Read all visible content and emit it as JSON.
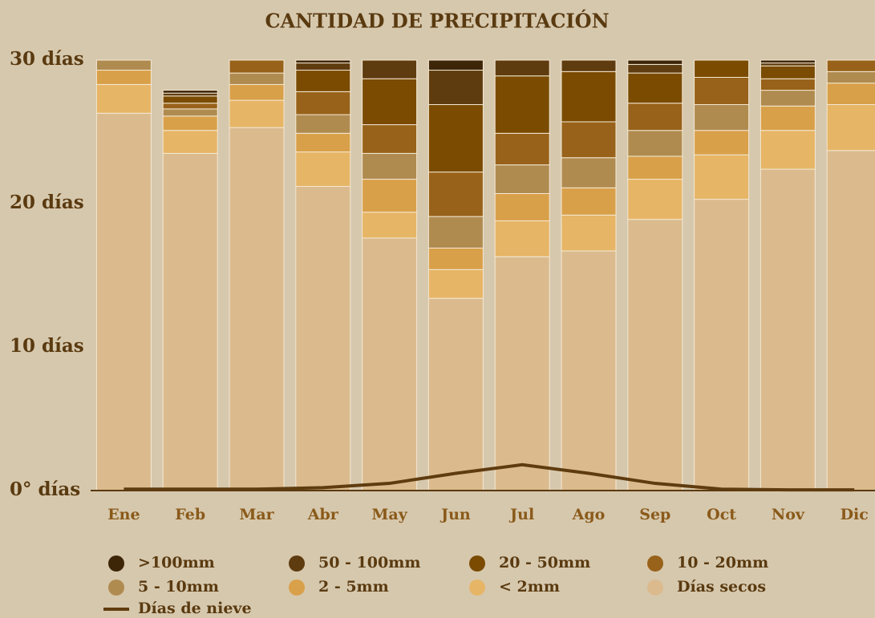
{
  "chart_data": {
    "type": "bar",
    "stacked": true,
    "title": "CANTIDAD DE PRECIPITACIÓN",
    "categories": [
      "Ene",
      "Feb",
      "Mar",
      "Abr",
      "May",
      "Jun",
      "Jul",
      "Ago",
      "Sep",
      "Oct",
      "Nov",
      "Dic"
    ],
    "ylim": [
      0,
      30
    ],
    "yticks": [
      {
        "value": 0,
        "label": "0° días"
      },
      {
        "value": 10,
        "label": "10 días"
      },
      {
        "value": 20,
        "label": "20 días"
      },
      {
        "value": 30,
        "label": "30 días"
      }
    ],
    "series": [
      {
        "name": "Días secos",
        "color": "#dbbb8e",
        "values": [
          26.3,
          23.5,
          25.3,
          21.2,
          17.6,
          13.4,
          16.3,
          16.7,
          18.9,
          20.3,
          22.4,
          23.7
        ]
      },
      {
        "name": "< 2mm",
        "color": "#e6b566",
        "values": [
          2.0,
          1.6,
          1.9,
          2.4,
          1.8,
          2.0,
          2.5,
          2.5,
          2.8,
          3.1,
          2.7,
          3.2
        ]
      },
      {
        "name": "2 - 5mm",
        "color": "#d9a04a",
        "values": [
          1.0,
          1.0,
          1.1,
          1.3,
          2.3,
          1.5,
          1.9,
          1.9,
          1.6,
          1.7,
          1.7,
          1.5
        ]
      },
      {
        "name": "5 - 10mm",
        "color": "#b08b50",
        "values": [
          0.7,
          0.5,
          0.8,
          1.3,
          1.8,
          2.2,
          2.0,
          2.1,
          1.8,
          1.8,
          1.1,
          0.8
        ]
      },
      {
        "name": "10 - 20mm",
        "color": "#98621a",
        "values": [
          0,
          0.4,
          0.9,
          1.6,
          2.0,
          3.1,
          2.2,
          2.5,
          1.9,
          1.9,
          0.8,
          0.8
        ]
      },
      {
        "name": "20 - 50mm",
        "color": "#7a4b00",
        "values": [
          0,
          0.5,
          0,
          1.5,
          3.2,
          4.7,
          4.0,
          3.5,
          2.1,
          1.2,
          0.9,
          0
        ]
      },
      {
        "name": "50 - 100mm",
        "color": "#5f3c0f",
        "values": [
          0,
          0.2,
          0,
          0.5,
          1.3,
          2.4,
          1.1,
          0.8,
          0.6,
          0,
          0.2,
          0
        ]
      },
      {
        "name": ">100mm",
        "color": "#3d2508",
        "values": [
          0,
          0.2,
          0,
          0.2,
          0,
          0.7,
          0,
          0,
          0.3,
          0,
          0.2,
          0
        ]
      }
    ],
    "line_series": {
      "name": "Días de nieve",
      "color": "#5f3c0f",
      "values": [
        0.1,
        0.1,
        0.1,
        0.2,
        0.5,
        1.2,
        1.8,
        1.2,
        0.5,
        0.1,
        0.05,
        0.05
      ]
    }
  }
}
